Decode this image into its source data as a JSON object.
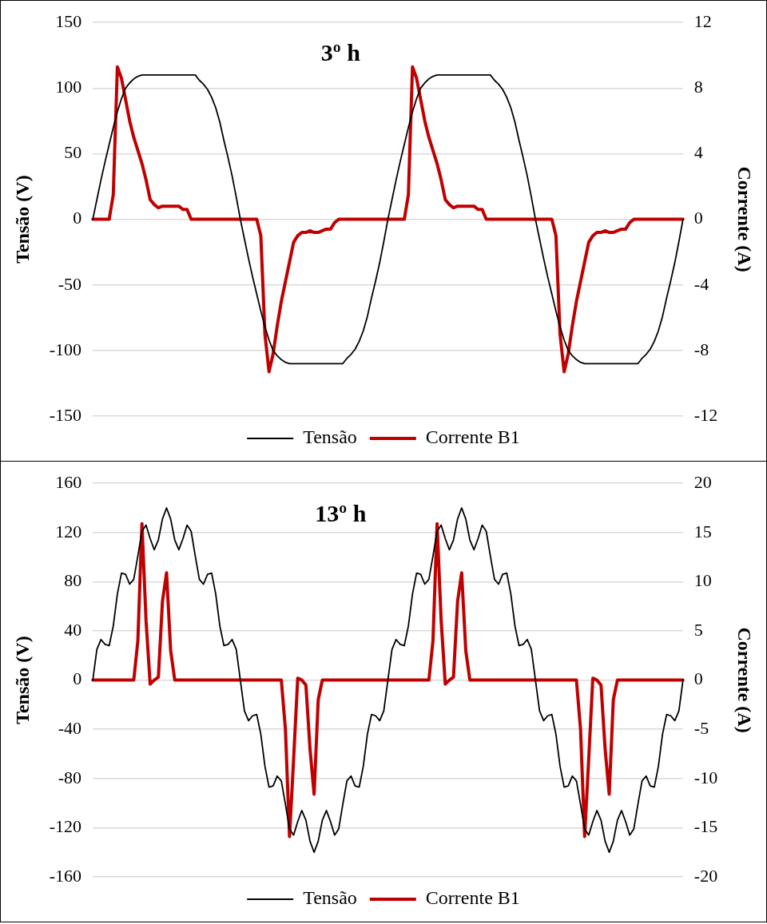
{
  "chart_data": [
    {
      "type": "line",
      "title": "3º h",
      "ylabel": "Tensão (V)",
      "y2label": "Corrente (A)",
      "categories": [
        null,
        null,
        null,
        null,
        null,
        null,
        null,
        null,
        null,
        null,
        null,
        null,
        null,
        null,
        null,
        null,
        null,
        null,
        null,
        null,
        null,
        null,
        null,
        null,
        null,
        null,
        null,
        null,
        null,
        null,
        null,
        null,
        null,
        null,
        null,
        null,
        null,
        null,
        null,
        null,
        null,
        null,
        null,
        null,
        null,
        null,
        null,
        null,
        null,
        null,
        null,
        null,
        null,
        null,
        null,
        null,
        null,
        null,
        null,
        null,
        null,
        null,
        null,
        null,
        null,
        null,
        null,
        null,
        null,
        null,
        null,
        null,
        null,
        null,
        null,
        null,
        null,
        null,
        null,
        null,
        null,
        null,
        null,
        null,
        null,
        null,
        null,
        null,
        null,
        null,
        null,
        null,
        null,
        null,
        null,
        null,
        null,
        null,
        null,
        null,
        null,
        null,
        null,
        null,
        null,
        null,
        null,
        null,
        null,
        null,
        null,
        null,
        null,
        null,
        null,
        null,
        null,
        null,
        null,
        null,
        null,
        null,
        null,
        null,
        null,
        null,
        null,
        null,
        null,
        null,
        null,
        null,
        null,
        null,
        null,
        null,
        null,
        null,
        null,
        null,
        null,
        null,
        null,
        null,
        null
      ],
      "series": [
        {
          "name": "Tensão",
          "color": "#000000",
          "values": [
            0,
            15,
            30,
            44,
            57,
            70,
            82,
            92,
            100,
            104,
            107,
            109,
            110,
            110,
            110,
            110,
            110,
            110,
            110,
            110,
            110,
            110,
            110,
            110,
            110,
            110,
            106,
            103,
            99,
            93,
            85,
            74,
            60,
            47,
            33,
            17,
            0,
            -15,
            -30,
            -44,
            -57,
            -70,
            -82,
            -92,
            -100,
            -104,
            -107,
            -109,
            -110,
            -110,
            -110,
            -110,
            -110,
            -110,
            -110,
            -110,
            -110,
            -110,
            -110,
            -110,
            -110,
            -110,
            -106,
            -103,
            -99,
            -93,
            -85,
            -74,
            -60,
            -47,
            -33,
            -17,
            0,
            15,
            30,
            44,
            57,
            70,
            82,
            92,
            100,
            104,
            107,
            109,
            110,
            110,
            110,
            110,
            110,
            110,
            110,
            110,
            110,
            110,
            110,
            110,
            110,
            110,
            106,
            103,
            99,
            93,
            85,
            74,
            60,
            47,
            33,
            17,
            0,
            -15,
            -30,
            -44,
            -57,
            -70,
            -82,
            -92,
            -100,
            -104,
            -107,
            -109,
            -110,
            -110,
            -110,
            -110,
            -110,
            -110,
            -110,
            -110,
            -110,
            -110,
            -110,
            -110,
            -110,
            -110,
            -106,
            -103,
            -99,
            -93,
            -85,
            -74,
            -60,
            -47,
            -33,
            -17,
            0
          ]
        },
        {
          "name": "Corrente B1",
          "color": "#c00000",
          "axis": "y2",
          "values": [
            0,
            0,
            0,
            0,
            0,
            1.5,
            9.3,
            8.6,
            7.3,
            6,
            5,
            4.2,
            3.4,
            2.4,
            1.2,
            0.9,
            0.7,
            0.8,
            0.8,
            0.8,
            0.8,
            0.8,
            0.6,
            0.6,
            0,
            0,
            0,
            0,
            0,
            0,
            0,
            0,
            0,
            0,
            0,
            0,
            0,
            0,
            0,
            0,
            0,
            -1,
            -7,
            -9.3,
            -8.2,
            -6.5,
            -5,
            -3.8,
            -2.6,
            -1.4,
            -1,
            -0.8,
            -0.8,
            -0.7,
            -0.8,
            -0.8,
            -0.7,
            -0.6,
            -0.6,
            -0.2,
            0,
            0,
            0,
            0,
            0,
            0,
            0,
            0,
            0,
            0,
            0,
            0,
            0,
            0,
            0,
            0,
            0,
            1.5,
            9.3,
            8.6,
            7.3,
            6,
            5,
            4.2,
            3.4,
            2.4,
            1.2,
            0.9,
            0.7,
            0.8,
            0.8,
            0.8,
            0.8,
            0.8,
            0.6,
            0.6,
            0,
            0,
            0,
            0,
            0,
            0,
            0,
            0,
            0,
            0,
            0,
            0,
            0,
            0,
            0,
            0,
            0,
            -1,
            -7,
            -9.3,
            -8.2,
            -6.5,
            -5,
            -3.8,
            -2.6,
            -1.4,
            -1,
            -0.8,
            -0.8,
            -0.7,
            -0.8,
            -0.8,
            -0.7,
            -0.6,
            -0.6,
            -0.2,
            0,
            0,
            0,
            0,
            0,
            0,
            0,
            0,
            0,
            0,
            0,
            0,
            0
          ]
        }
      ],
      "ylim": [
        -150,
        150
      ],
      "yticks": [
        -150,
        -100,
        -50,
        0,
        50,
        100,
        150
      ],
      "y2lim": [
        -12,
        12
      ],
      "y2ticks": [
        -12,
        -8,
        -4,
        0,
        4,
        8,
        12
      ],
      "grid": "y",
      "legend": "bottom",
      "marker": "none"
    },
    {
      "type": "line",
      "title": "13º h",
      "ylabel": "Tensão (V)",
      "y2label": "Corrente (A)",
      "categories": [
        null,
        null,
        null,
        null,
        null,
        null,
        null,
        null,
        null,
        null,
        null,
        null,
        null,
        null,
        null,
        null,
        null,
        null,
        null,
        null,
        null,
        null,
        null,
        null,
        null,
        null,
        null,
        null,
        null,
        null,
        null,
        null,
        null,
        null,
        null,
        null,
        null,
        null,
        null,
        null,
        null,
        null,
        null,
        null,
        null,
        null,
        null,
        null,
        null,
        null,
        null,
        null,
        null,
        null,
        null,
        null,
        null,
        null,
        null,
        null,
        null,
        null,
        null,
        null,
        null,
        null,
        null,
        null,
        null,
        null,
        null,
        null,
        null,
        null,
        null,
        null,
        null,
        null,
        null,
        null,
        null,
        null,
        null,
        null,
        null,
        null,
        null,
        null,
        null,
        null,
        null,
        null,
        null,
        null,
        null,
        null,
        null,
        null,
        null,
        null,
        null,
        null,
        null,
        null,
        null,
        null,
        null,
        null,
        null,
        null,
        null,
        null,
        null,
        null,
        null,
        null,
        null,
        null,
        null,
        null,
        null,
        null,
        null,
        null,
        null,
        null,
        null,
        null,
        null,
        null,
        null,
        null,
        null,
        null,
        null,
        null,
        null,
        null,
        null,
        null,
        null,
        null,
        null,
        null,
        null
      ],
      "series": [
        {
          "name": "Tensão",
          "color": "#000000",
          "values": [
            0,
            25,
            33,
            29,
            28,
            44,
            70,
            87,
            86,
            78,
            82,
            101,
            121,
            126,
            115,
            106,
            114,
            131,
            140,
            131,
            114,
            106,
            115,
            126,
            121,
            101,
            82,
            78,
            86,
            87,
            70,
            44,
            28,
            29,
            33,
            25,
            0,
            -25,
            -33,
            -29,
            -28,
            -44,
            -70,
            -87,
            -86,
            -78,
            -82,
            -101,
            -121,
            -126,
            -115,
            -106,
            -114,
            -131,
            -140,
            -131,
            -114,
            -106,
            -115,
            -126,
            -121,
            -101,
            -82,
            -78,
            -86,
            -87,
            -70,
            -44,
            -28,
            -29,
            -33,
            -25,
            0,
            25,
            33,
            29,
            28,
            44,
            70,
            87,
            86,
            78,
            82,
            101,
            121,
            126,
            115,
            106,
            114,
            131,
            140,
            131,
            114,
            106,
            115,
            126,
            121,
            101,
            82,
            78,
            86,
            87,
            70,
            44,
            28,
            29,
            33,
            25,
            0,
            -25,
            -33,
            -29,
            -28,
            -44,
            -70,
            -87,
            -86,
            -78,
            -82,
            -101,
            -121,
            -126,
            -115,
            -106,
            -114,
            -131,
            -140,
            -131,
            -114,
            -106,
            -115,
            -126,
            -121,
            -101,
            -82,
            -78,
            -86,
            -87,
            -70,
            -44,
            -28,
            -29,
            -33,
            -25,
            0
          ]
        },
        {
          "name": "Corrente B1",
          "color": "#c00000",
          "axis": "y2",
          "values": [
            0,
            0,
            0,
            0,
            0,
            0,
            0,
            0,
            0,
            0,
            0,
            4,
            15.9,
            6,
            -0.4,
            0,
            0.3,
            8,
            10.9,
            3,
            0,
            0,
            0,
            0,
            0,
            0,
            0,
            0,
            0,
            0,
            0,
            0,
            0,
            0,
            0,
            0,
            0,
            0,
            0,
            0,
            0,
            0,
            0,
            0,
            0,
            0,
            0,
            -5,
            -15.9,
            -8,
            0.2,
            0,
            -0.5,
            -7,
            -11.6,
            -2,
            0,
            0,
            0,
            0,
            0,
            0,
            0,
            0,
            0,
            0,
            0,
            0,
            0,
            0,
            0,
            0,
            0,
            0,
            0,
            0,
            0,
            0,
            0,
            0,
            0,
            0,
            0,
            4,
            15.9,
            6,
            -0.4,
            0,
            0.3,
            8,
            10.9,
            3,
            0,
            0,
            0,
            0,
            0,
            0,
            0,
            0,
            0,
            0,
            0,
            0,
            0,
            0,
            0,
            0,
            0,
            0,
            0,
            0,
            0,
            0,
            0,
            0,
            0,
            0,
            0,
            -5,
            -15.9,
            -8,
            0.2,
            0,
            -0.5,
            -7,
            -11.6,
            -2,
            0,
            0,
            0,
            0,
            0,
            0,
            0,
            0,
            0,
            0,
            0,
            0,
            0,
            0,
            0,
            0,
            0
          ]
        }
      ],
      "ylim": [
        -160,
        160
      ],
      "yticks": [
        -160,
        -120,
        -80,
        -40,
        0,
        40,
        80,
        120,
        160
      ],
      "y2lim": [
        -20,
        20
      ],
      "y2ticks": [
        -20,
        -15,
        -10,
        -5,
        0,
        5,
        10,
        15,
        20
      ],
      "grid": "y",
      "legend": "bottom",
      "marker": "none"
    }
  ]
}
